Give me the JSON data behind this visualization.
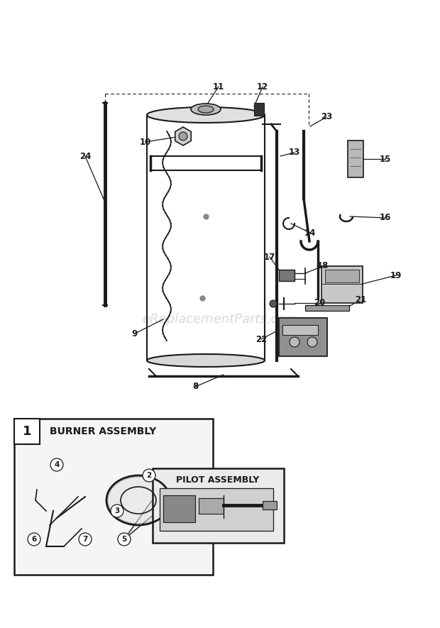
{
  "bg_color": "#ffffff",
  "line_color": "#1a1a1a",
  "watermark_text": "eReplacementParts.com",
  "watermark_color": "#bbbbbb",
  "watermark_fontsize": 13
}
